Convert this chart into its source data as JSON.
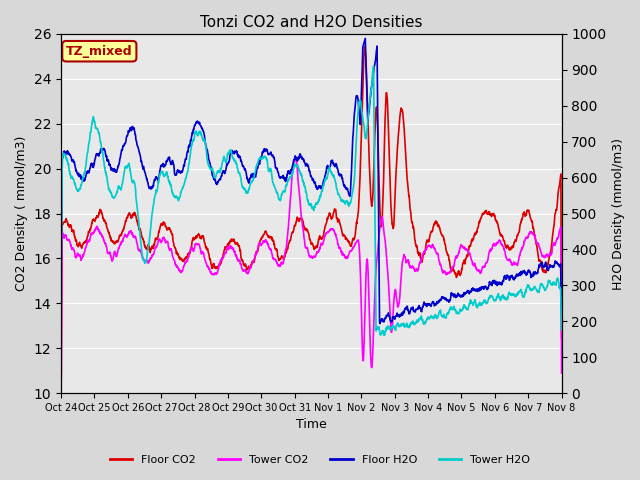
{
  "title": "Tonzi CO2 and H2O Densities",
  "xlabel": "Time",
  "ylabel_left": "CO2 Density ( mmol/m3)",
  "ylabel_right": "H2O Density (mmol/m3)",
  "co2_ylim": [
    10,
    26
  ],
  "h2o_ylim": [
    0,
    1000
  ],
  "annotation": "TZ_mixed",
  "annotation_color": "#aa0000",
  "annotation_bg": "#ffff99",
  "annotation_border": "#aa0000",
  "xtick_labels": [
    "Oct 24",
    "Oct 25",
    "Oct 26",
    "Oct 27",
    "Oct 28",
    "Oct 29",
    "Oct 30",
    "Oct 31",
    "Nov 1",
    "Nov 2",
    "Nov 3",
    "Nov 4",
    "Nov 5",
    "Nov 6",
    "Nov 7",
    "Nov 8"
  ],
  "colors": {
    "floor_co2": "#dd0000",
    "tower_co2": "#ff00ff",
    "floor_h2o": "#0000cc",
    "tower_h2o": "#00cccc"
  },
  "background_color": "#d8d8d8",
  "plot_bg": "#e8e8e8",
  "grid_color": "#ffffff",
  "figsize": [
    6.4,
    4.8
  ],
  "dpi": 100
}
